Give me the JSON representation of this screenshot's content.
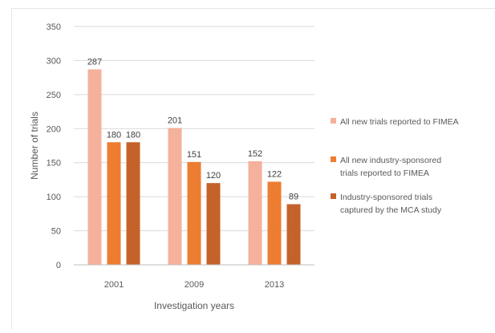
{
  "chart_data": {
    "type": "bar",
    "title": "",
    "xlabel": "Investigation years",
    "ylabel": "Number of trials",
    "categories": [
      "2001",
      "2009",
      "2013"
    ],
    "ylim": [
      0,
      350
    ],
    "yticks": [
      0,
      50,
      100,
      150,
      200,
      250,
      300,
      350
    ],
    "grid": true,
    "legend_position": "right",
    "series": [
      {
        "name": "All new trials reported to FIMEA",
        "color": "#f4b19b",
        "values": [
          287,
          201,
          152
        ]
      },
      {
        "name": "All new industry-sponsored trials reported to FIMEA",
        "color": "#ed7d31",
        "values": [
          180,
          151,
          122
        ]
      },
      {
        "name": "Industry-sponsored trials captured by the MCA study",
        "color": "#c5622a",
        "values": [
          180,
          120,
          89
        ]
      }
    ],
    "legend_lines": [
      [
        "All new trials reported to FIMEA"
      ],
      [
        "All new industry-sponsored",
        "trials reported to FIMEA"
      ],
      [
        "Industry-sponsored trials",
        "captured by the MCA study"
      ]
    ]
  }
}
